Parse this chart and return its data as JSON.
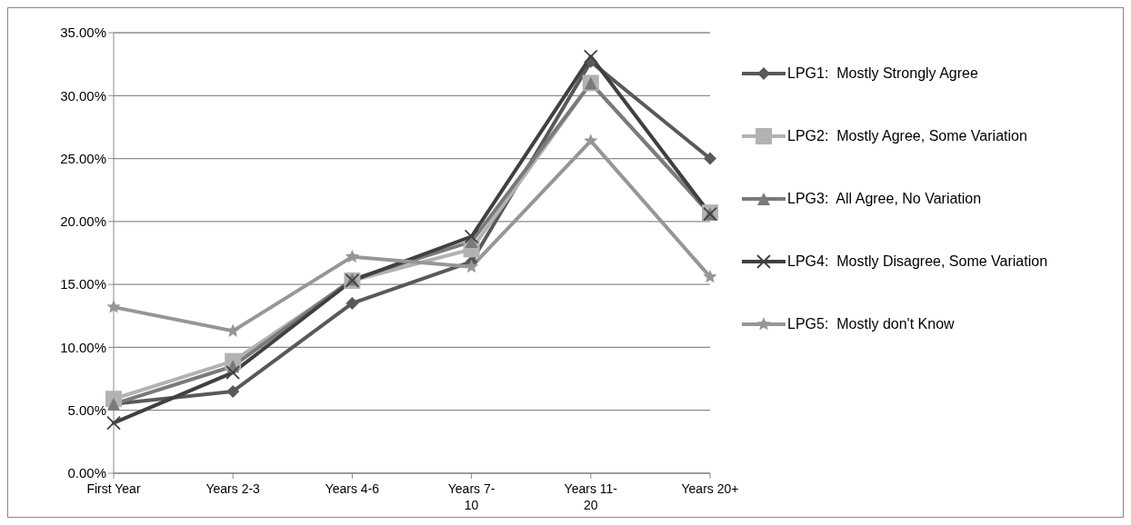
{
  "chart_data": {
    "type": "line",
    "categories": [
      "First Year",
      "Years 2-3",
      "Years 4-6",
      "Years 7-10",
      "Years 11-20",
      "Years 20+"
    ],
    "series": [
      {
        "name": "LPG1:  Mostly Strongly Agree",
        "color": "#595959",
        "marker": "diamond",
        "values": [
          5.5,
          6.5,
          13.5,
          16.8,
          32.7,
          25.0
        ]
      },
      {
        "name": "LPG2:  Mostly Agree, Some Variation",
        "color": "#b2b2b2",
        "marker": "square",
        "values": [
          5.9,
          8.9,
          15.3,
          17.8,
          31.0,
          20.7
        ]
      },
      {
        "name": "LPG3:  All Agree, No Variation",
        "color": "#7a7a7a",
        "marker": "triangle",
        "values": [
          5.5,
          8.5,
          15.4,
          18.4,
          31.0,
          20.6
        ]
      },
      {
        "name": "LPG4:  Mostly Disagree, Some Variation",
        "color": "#404040",
        "marker": "cross",
        "values": [
          4.0,
          8.0,
          15.3,
          18.8,
          33.1,
          20.6
        ]
      },
      {
        "name": "LPG5:  Mostly don't Know",
        "color": "#969696",
        "marker": "star",
        "values": [
          13.2,
          11.3,
          17.2,
          16.4,
          26.4,
          15.6
        ]
      }
    ],
    "ylim": [
      0,
      35
    ],
    "yticks": [
      {
        "value": 0,
        "label": "0.00%"
      },
      {
        "value": 5,
        "label": "5.00%"
      },
      {
        "value": 10,
        "label": "10.00%"
      },
      {
        "value": 15,
        "label": "15.00%"
      },
      {
        "value": 20,
        "label": "20.00%"
      },
      {
        "value": 25,
        "label": "25.00%"
      },
      {
        "value": 30,
        "label": "30.00%"
      },
      {
        "value": 35,
        "label": "35.00%"
      }
    ],
    "grid": "y",
    "legend": "right",
    "line_style": "solid"
  }
}
